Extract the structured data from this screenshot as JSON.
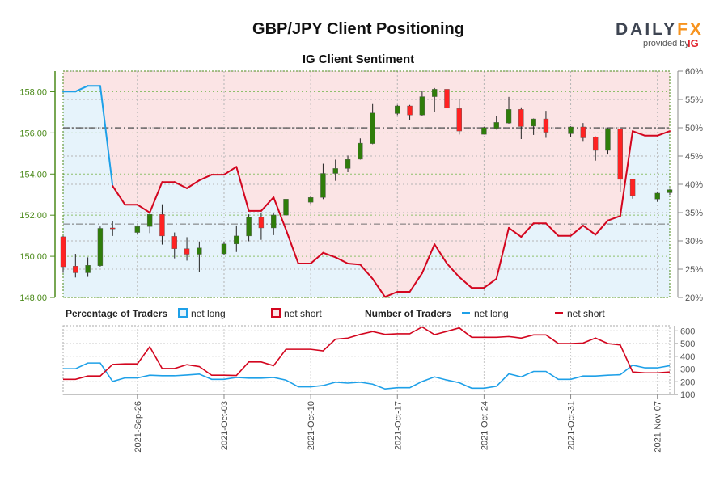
{
  "logo": {
    "brand_left": "DAIL",
    "brand_mid": "Y",
    "brand_right": "FX",
    "provided_by": "provided by",
    "ig": "IG"
  },
  "colors": {
    "bull": "#2f7d0a",
    "bear": "#ff2222",
    "net_long": "#1ea0e8",
    "net_short": "#d3061f",
    "short_zone": "#fbe4e5",
    "long_zone": "#e6f3fb",
    "price_axis": "#4b8a1a"
  },
  "chart_data": [
    {
      "type": "candlestick+area",
      "title": "GBP/JPY Client Positioning",
      "subtitle": "IG Client Sentiment",
      "price_ylim": [
        148,
        159
      ],
      "price_ticks": [
        "148.00",
        "150.00",
        "152.00",
        "154.00",
        "156.00",
        "158.00"
      ],
      "pct_ylim": [
        20,
        60
      ],
      "pct_ticks": [
        "20%",
        "25%",
        "30%",
        "35%",
        "40%",
        "45%",
        "50%",
        "55%",
        "60%"
      ],
      "reference_lines": [
        156.24,
        151.57
      ],
      "grid": true,
      "dates": [
        "2021-09-20",
        "2021-09-21",
        "2021-09-22",
        "2021-09-23",
        "2021-09-24",
        "2021-09-25",
        "2021-09-26",
        "2021-09-27",
        "2021-09-28",
        "2021-09-29",
        "2021-09-30",
        "2021-10-01",
        "2021-10-02",
        "2021-10-03",
        "2021-10-04",
        "2021-10-05",
        "2021-10-06",
        "2021-10-07",
        "2021-10-08",
        "2021-10-09",
        "2021-10-10",
        "2021-10-11",
        "2021-10-12",
        "2021-10-13",
        "2021-10-14",
        "2021-10-15",
        "2021-10-16",
        "2021-10-17",
        "2021-10-18",
        "2021-10-19",
        "2021-10-20",
        "2021-10-21",
        "2021-10-22",
        "2021-10-23",
        "2021-10-24",
        "2021-10-25",
        "2021-10-26",
        "2021-10-27",
        "2021-10-28",
        "2021-10-29",
        "2021-10-30",
        "2021-10-31",
        "2021-11-01",
        "2021-11-02",
        "2021-11-03",
        "2021-11-04",
        "2021-11-05",
        "2021-11-06",
        "2021-11-07",
        "2021-11-08"
      ],
      "candles_ohlc": [
        [
          150.95,
          150.99,
          149.2,
          149.49
        ],
        [
          149.52,
          150.12,
          148.97,
          149.2
        ],
        [
          149.2,
          149.95,
          149.0,
          149.56
        ],
        [
          149.54,
          151.45,
          149.5,
          151.36
        ],
        [
          151.38,
          151.71,
          150.99,
          151.36
        ],
        null,
        [
          151.16,
          151.5,
          151.05,
          151.45
        ],
        [
          151.45,
          152.08,
          151.13,
          152.04
        ],
        [
          152.04,
          152.53,
          150.57,
          150.99
        ],
        [
          150.97,
          151.16,
          149.9,
          150.37
        ],
        [
          150.37,
          150.93,
          149.79,
          150.1
        ],
        [
          150.1,
          150.72,
          149.23,
          150.41
        ],
        null,
        [
          150.12,
          150.67,
          150.06,
          150.6
        ],
        [
          150.6,
          151.5,
          150.21,
          150.99
        ],
        [
          150.99,
          152.04,
          150.73,
          151.91
        ],
        [
          151.91,
          152.13,
          150.8,
          151.38
        ],
        [
          151.38,
          152.08,
          151.03,
          152.01
        ],
        [
          152.0,
          152.94,
          151.97,
          152.78
        ],
        null,
        [
          152.63,
          152.93,
          152.54,
          152.86
        ],
        [
          152.86,
          154.5,
          152.78,
          154.03
        ],
        [
          154.03,
          154.7,
          153.67,
          154.27
        ],
        [
          154.27,
          154.9,
          154.09,
          154.71
        ],
        [
          154.72,
          155.73,
          154.7,
          155.5
        ],
        [
          155.48,
          157.4,
          155.45,
          156.97
        ],
        null,
        [
          156.94,
          157.36,
          156.86,
          157.31
        ],
        [
          157.31,
          157.36,
          156.62,
          156.87
        ],
        [
          156.87,
          158.02,
          156.84,
          157.76
        ],
        [
          157.76,
          158.18,
          157.01,
          158.12
        ],
        [
          158.12,
          158.14,
          156.77,
          157.2
        ],
        [
          157.18,
          157.62,
          155.92,
          156.09
        ],
        null,
        [
          155.93,
          156.3,
          155.92,
          156.26
        ],
        [
          156.22,
          156.81,
          156.16,
          156.51
        ],
        [
          156.48,
          157.75,
          156.45,
          157.14
        ],
        [
          157.14,
          157.24,
          155.7,
          156.31
        ],
        [
          156.33,
          156.7,
          155.9,
          156.68
        ],
        [
          156.68,
          157.07,
          155.76,
          156.03
        ],
        null,
        [
          155.96,
          156.32,
          155.79,
          156.29
        ],
        [
          156.29,
          156.48,
          155.57,
          155.76
        ],
        [
          155.79,
          155.83,
          154.65,
          155.15
        ],
        [
          155.15,
          156.25,
          154.95,
          156.22
        ],
        [
          156.2,
          156.2,
          153.11,
          153.74
        ],
        [
          153.74,
          153.74,
          152.8,
          152.95
        ],
        null,
        [
          152.78,
          153.15,
          152.65,
          153.07
        ],
        [
          153.09,
          153.28,
          152.98,
          153.24
        ]
      ],
      "net_long_pct": [
        56.4,
        56.4,
        57.4,
        57.4,
        39.7,
        36.4,
        36.4,
        35,
        40.4,
        40.4,
        39.3,
        40.7,
        41.7,
        41.7,
        43.1,
        35.3,
        35.3,
        37.7,
        32,
        26,
        26,
        27.9,
        27.1,
        26,
        25.8,
        23.3,
        20.1,
        21,
        21,
        24.3,
        29.4,
        26,
        23.6,
        21.7,
        21.7,
        23.3,
        32.3,
        30.7,
        33.1,
        33.1,
        30.9,
        30.9,
        32.7,
        31.1,
        33.6,
        34.4,
        49.4,
        48.6,
        48.6,
        49.4
      ]
    },
    {
      "type": "line",
      "ylim": [
        100,
        640
      ],
      "y_ticks": [
        "100",
        "200",
        "300",
        "400",
        "500",
        "600"
      ],
      "x_ticks": [
        "2021-Sep-26",
        "2021-Oct-03",
        "2021-Oct-10",
        "2021-Oct-17",
        "2021-Oct-24",
        "2021-Oct-31",
        "2021-Nov-07"
      ],
      "x_tick_dates": [
        "2021-09-26",
        "2021-10-03",
        "2021-10-10",
        "2021-10-17",
        "2021-10-24",
        "2021-10-31",
        "2021-11-07"
      ],
      "series": [
        {
          "name": "net long",
          "values": [
            302,
            302,
            347,
            347,
            202,
            230,
            230,
            251,
            247,
            247,
            253,
            260,
            219,
            219,
            234,
            228,
            228,
            234,
            213,
            160,
            160,
            170,
            196,
            189,
            196,
            181,
            143,
            153,
            153,
            202,
            238,
            213,
            192,
            149,
            149,
            164,
            262,
            238,
            281,
            281,
            219,
            219,
            245,
            245,
            251,
            255,
            330,
            309,
            309,
            326
          ]
        },
        {
          "name": "net short",
          "values": [
            219,
            219,
            245,
            245,
            336,
            340,
            340,
            475,
            304,
            304,
            334,
            319,
            251,
            251,
            249,
            355,
            355,
            326,
            455,
            455,
            455,
            443,
            534,
            543,
            572,
            594,
            572,
            577,
            577,
            630,
            570,
            596,
            623,
            549,
            549,
            549,
            555,
            543,
            568,
            568,
            500,
            500,
            504,
            543,
            500,
            489,
            277,
            270,
            270,
            277
          ]
        }
      ]
    }
  ],
  "legend": {
    "pct_heading": "Percentage of Traders",
    "pct_long": "net long",
    "pct_short": "net short",
    "num_heading": "Number of Traders",
    "num_long": "net long",
    "num_short": "net short"
  }
}
